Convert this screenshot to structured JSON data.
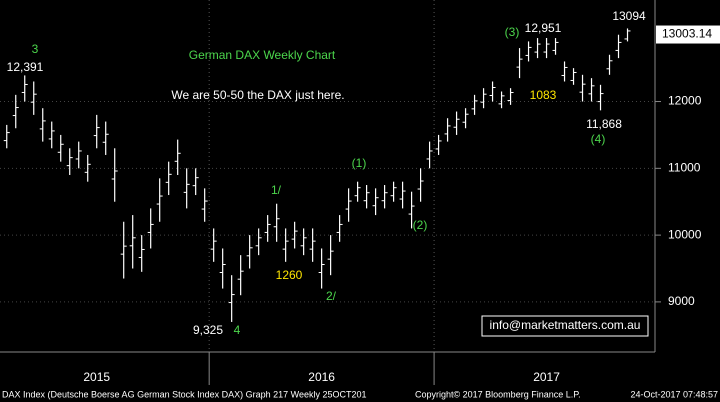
{
  "chart_data": {
    "type": "hlbar",
    "title": "German DAX Weekly Chart",
    "subtitle": "We are 50-50 the DAX just here.",
    "color": "#ffffff",
    "x": [
      2015.1,
      2015.14,
      2015.18,
      2015.22,
      2015.26,
      2015.3,
      2015.34,
      2015.38,
      2015.42,
      2015.46,
      2015.5,
      2015.54,
      2015.58,
      2015.62,
      2015.66,
      2015.7,
      2015.74,
      2015.78,
      2015.82,
      2015.86,
      2015.9,
      2015.94,
      2015.98,
      2016.02,
      2016.06,
      2016.1,
      2016.14,
      2016.18,
      2016.22,
      2016.26,
      2016.3,
      2016.34,
      2016.38,
      2016.42,
      2016.46,
      2016.5,
      2016.54,
      2016.58,
      2016.62,
      2016.66,
      2016.7,
      2016.74,
      2016.78,
      2016.82,
      2016.86,
      2016.9,
      2016.94,
      2016.98,
      2017.02,
      2017.06,
      2017.1,
      2017.14,
      2017.18,
      2017.22,
      2017.26,
      2017.3,
      2017.34,
      2017.38,
      2017.42,
      2017.46,
      2017.5,
      2017.54,
      2017.58,
      2017.62,
      2017.66,
      2017.7,
      2017.74,
      2017.78,
      2017.82,
      2017.86
    ],
    "low": [
      11300,
      11600,
      12000,
      11800,
      11400,
      11300,
      11100,
      10900,
      11000,
      10800,
      11300,
      11200,
      10500,
      9350,
      9500,
      9450,
      9800,
      10200,
      10600,
      10900,
      10400,
      10600,
      10200,
      9600,
      9200,
      8700,
      9100,
      9500,
      9700,
      9900,
      9900,
      9600,
      9800,
      9700,
      9600,
      9200,
      9400,
      9900,
      10200,
      10500,
      10400,
      10300,
      10400,
      10500,
      10400,
      10100,
      10500,
      11000,
      11200,
      11400,
      11500,
      11600,
      11800,
      11900,
      12000,
      11900,
      11950,
      12350,
      12600,
      12650,
      12650,
      12700,
      12300,
      12250,
      12000,
      12000,
      11868,
      12400,
      12650,
      12900
    ],
    "high": [
      11650,
      12100,
      12391,
      12300,
      11900,
      11700,
      11500,
      11300,
      11400,
      11200,
      11800,
      11700,
      11300,
      10200,
      10300,
      10000,
      10400,
      10850,
      11100,
      11430,
      11000,
      11000,
      10700,
      10100,
      9800,
      9400,
      9700,
      10000,
      10100,
      10300,
      10470,
      10100,
      10200,
      10100,
      10100,
      9800,
      10000,
      10300,
      10700,
      10800,
      10750,
      10700,
      10750,
      10800,
      10800,
      10650,
      11000,
      11400,
      11500,
      11750,
      11850,
      11900,
      12100,
      12200,
      12300,
      12150,
      12200,
      12800,
      12900,
      12950,
      12951,
      12950,
      12600,
      12500,
      12400,
      12350,
      12250,
      12700,
      13000,
      13094
    ],
    "xlim": [
      2015.07,
      2017.96
    ],
    "xticks": [
      {
        "value": 2015.5,
        "label": "2015"
      },
      {
        "value": 2016.5,
        "label": "2016"
      },
      {
        "value": 2017.5,
        "label": "2017"
      }
    ],
    "ylim": [
      8250,
      13520
    ],
    "yticks": [
      9000,
      10000,
      11000,
      12000
    ],
    "grid": true,
    "last_price": 13003.14,
    "annotations": [
      {
        "text": "3",
        "color": "#4cd64c"
      },
      {
        "text": "12,391",
        "color": "#ffffff"
      },
      {
        "text": "9,325",
        "color": "#ffffff"
      },
      {
        "text": "4",
        "color": "#4cd64c"
      },
      {
        "text": "1/",
        "color": "#4cd64c"
      },
      {
        "text": "1260",
        "color": "#ffe600"
      },
      {
        "text": "2/",
        "color": "#4cd64c"
      },
      {
        "text": "(1)",
        "color": "#4cd64c"
      },
      {
        "text": "(2)",
        "color": "#4cd64c"
      },
      {
        "text": "(3)",
        "color": "#4cd64c"
      },
      {
        "text": "12,951",
        "color": "#ffffff"
      },
      {
        "text": "1083",
        "color": "#ffe600"
      },
      {
        "text": "13094",
        "color": "#ffffff"
      },
      {
        "text": "11,868",
        "color": "#ffffff"
      },
      {
        "text": "(4)",
        "color": "#4cd64c"
      }
    ],
    "watermark": "info@marketmatters.com.au",
    "footer": {
      "left": "DAX Index (Deutsche Boerse AG German Stock Index DAX) Graph 217  Weekly 25OCT201",
      "center": "Copyright© 2017 Bloomberg Finance L.P.",
      "right": "24-Oct-2017 07:48:57"
    }
  }
}
